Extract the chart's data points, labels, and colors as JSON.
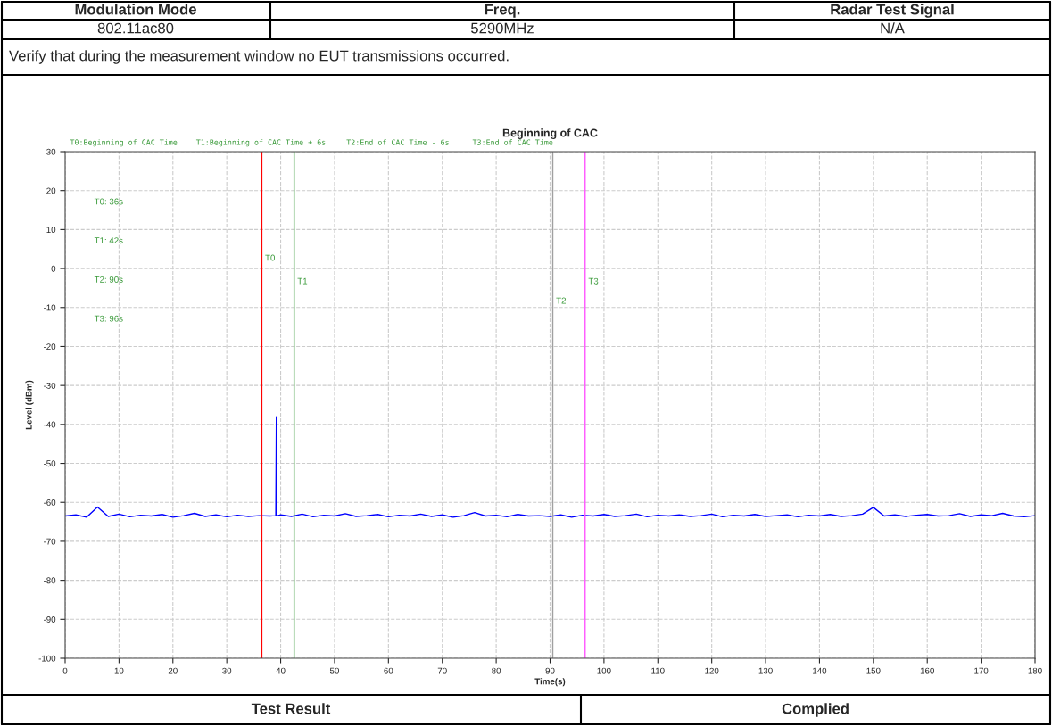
{
  "chart_data": {
    "type": "line",
    "title": "Beginning of CAC",
    "xlabel": "Time(s)",
    "ylabel": "Level (dBm)",
    "x": [
      0,
      2,
      4,
      6,
      8,
      10,
      12,
      14,
      16,
      18,
      20,
      22,
      24,
      26,
      28,
      30,
      32,
      34,
      36,
      38,
      39.1,
      39.2,
      39.3,
      40,
      42,
      44,
      46,
      48,
      50,
      52,
      54,
      56,
      58,
      60,
      62,
      64,
      66,
      68,
      70,
      72,
      74,
      76,
      78,
      80,
      82,
      84,
      86,
      88,
      90,
      92,
      94,
      96,
      98,
      100,
      102,
      104,
      106,
      108,
      110,
      112,
      114,
      116,
      118,
      120,
      122,
      124,
      126,
      128,
      130,
      132,
      134,
      136,
      138,
      140,
      142,
      144,
      146,
      148,
      150,
      152,
      154,
      156,
      158,
      160,
      162,
      164,
      166,
      168,
      170,
      172,
      174,
      176,
      178,
      180
    ],
    "series": [
      {
        "color": "#0000ff",
        "values": [
          -63.5,
          -63.2,
          -63.8,
          -61.2,
          -63.6,
          -63.0,
          -63.7,
          -63.3,
          -63.5,
          -63.1,
          -63.8,
          -63.4,
          -62.8,
          -63.6,
          -63.2,
          -63.7,
          -63.3,
          -63.6,
          -63.4,
          -63.5,
          -63.4,
          -38,
          -63.5,
          -63.2,
          -63.6,
          -63.0,
          -63.7,
          -63.3,
          -63.5,
          -62.9,
          -63.6,
          -63.4,
          -63.1,
          -63.7,
          -63.3,
          -63.5,
          -63.0,
          -63.6,
          -63.2,
          -63.8,
          -63.4,
          -62.6,
          -63.5,
          -63.3,
          -63.7,
          -63.1,
          -63.5,
          -63.4,
          -63.6,
          -63.2,
          -63.8,
          -63.3,
          -63.5,
          -63.1,
          -63.6,
          -63.4,
          -63.0,
          -63.7,
          -63.3,
          -63.5,
          -63.2,
          -63.6,
          -63.4,
          -63.0,
          -63.7,
          -63.3,
          -63.5,
          -63.1,
          -63.6,
          -63.4,
          -63.2,
          -63.7,
          -63.3,
          -63.5,
          -63.1,
          -63.6,
          -63.4,
          -63.0,
          -61.3,
          -63.5,
          -63.2,
          -63.6,
          -63.3,
          -63.1,
          -63.5,
          -63.4,
          -62.9,
          -63.6,
          -63.2,
          -63.4,
          -62.8,
          -63.5,
          -63.7,
          -63.4
        ]
      }
    ],
    "xlim": [
      0,
      180
    ],
    "xticks": [
      0,
      10,
      20,
      30,
      40,
      50,
      60,
      70,
      80,
      90,
      100,
      110,
      120,
      130,
      140,
      150,
      160,
      170,
      180
    ],
    "ylim": [
      -100,
      30
    ],
    "yticks": [
      -100,
      -90,
      -80,
      -70,
      -60,
      -50,
      -40,
      -30,
      -20,
      -10,
      0,
      10,
      20,
      30
    ],
    "grid": true,
    "legend": false,
    "ref_lines": [
      {
        "axis": "x",
        "value": 36.5,
        "label": "T0",
        "color": "#ff0000"
      },
      {
        "axis": "x",
        "value": 42.5,
        "label": "T1",
        "color": "#3a9a3a"
      },
      {
        "axis": "x",
        "value": 90.5,
        "label": "T2",
        "color": "#a0a0a0"
      },
      {
        "axis": "x",
        "value": 96.5,
        "label": "T3",
        "color": "#ff55ff"
      }
    ],
    "annotations": [
      "Modulation Mode",
      "Freq.",
      "Radar Test Signal",
      "802.11ac80",
      "5290MHz",
      "N/A",
      "Verify that during the measurement window no EUT transmissions occurred.",
      "Test Result",
      "Complied",
      "T0:Beginning of CAC Time",
      "T1:Beginning of CAC Time + 6s",
      "T2:End of CAC Time - 6s",
      "T3:End of CAC Time",
      "T0: 36s",
      "T1: 42s",
      "T2: 90s",
      "T3: 96s"
    ]
  }
}
